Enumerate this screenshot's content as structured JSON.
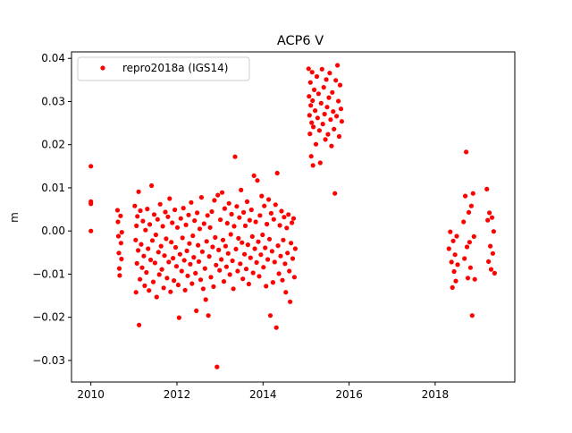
{
  "chart_data": {
    "type": "scatter",
    "title": "ACP6 V",
    "xlabel": "",
    "ylabel": "m",
    "xlim": [
      2009.55,
      2019.85
    ],
    "ylim": [
      -0.035,
      0.0415
    ],
    "xticks": [
      2010,
      2012,
      2014,
      2016,
      2018
    ],
    "yticks": [
      -0.03,
      -0.02,
      -0.01,
      0.0,
      0.01,
      0.02,
      0.03,
      0.04
    ],
    "ytick_labels": [
      "−0.03",
      "−0.02",
      "−0.01",
      "0.00",
      "0.01",
      "0.02",
      "0.03",
      "0.04"
    ],
    "grid": false,
    "legend": {
      "placement": "top-left",
      "entries": [
        "repro2018a (IGS14)"
      ]
    },
    "series": [
      {
        "name": "repro2018a (IGS14)",
        "color": "#ff0000",
        "marker": "circle",
        "points": [
          [
            2010.0,
            0.015
          ],
          [
            2010.0,
            0.0068
          ],
          [
            2010.0,
            0.0063
          ],
          [
            2010.0,
            0.0
          ],
          [
            2010.62,
            0.0048
          ],
          [
            2010.63,
            0.0021
          ],
          [
            2010.64,
            -0.0012
          ],
          [
            2010.65,
            -0.0051
          ],
          [
            2010.66,
            -0.0087
          ],
          [
            2010.67,
            -0.0103
          ],
          [
            2010.69,
            0.0035
          ],
          [
            2010.7,
            -0.0028
          ],
          [
            2010.71,
            -0.0065
          ],
          [
            2010.72,
            -0.0003
          ],
          [
            2011.02,
            0.0058
          ],
          [
            2011.04,
            -0.0021
          ],
          [
            2011.05,
            -0.0142
          ],
          [
            2011.06,
            0.0012
          ],
          [
            2011.07,
            -0.0075
          ],
          [
            2011.08,
            0.0034
          ],
          [
            2011.1,
            -0.0045
          ],
          [
            2011.11,
            0.0091
          ],
          [
            2011.12,
            -0.0218
          ],
          [
            2011.14,
            -0.0112
          ],
          [
            2011.15,
            0.0047
          ],
          [
            2011.17,
            -0.0031
          ],
          [
            2011.19,
            -0.0085
          ],
          [
            2011.21,
            0.0023
          ],
          [
            2011.23,
            -0.0058
          ],
          [
            2011.25,
            -0.0127
          ],
          [
            2011.27,
            0.0002
          ],
          [
            2011.29,
            -0.0096
          ],
          [
            2011.31,
            0.0051
          ],
          [
            2011.33,
            -0.0041
          ],
          [
            2011.35,
            -0.0138
          ],
          [
            2011.37,
            0.0015
          ],
          [
            2011.39,
            -0.0067
          ],
          [
            2011.41,
            0.0105
          ],
          [
            2011.43,
            -0.0022
          ],
          [
            2011.45,
            -0.0118
          ],
          [
            2011.47,
            0.0038
          ],
          [
            2011.49,
            -0.0074
          ],
          [
            2011.51,
            -0.0009
          ],
          [
            2011.53,
            -0.0153
          ],
          [
            2011.55,
            0.0027
          ],
          [
            2011.57,
            -0.0049
          ],
          [
            2011.59,
            -0.0101
          ],
          [
            2011.61,
            0.0062
          ],
          [
            2011.63,
            -0.0035
          ],
          [
            2011.65,
            -0.0089
          ],
          [
            2011.67,
            0.0011
          ],
          [
            2011.69,
            -0.0132
          ],
          [
            2011.71,
            -0.0057
          ],
          [
            2011.73,
            0.0044
          ],
          [
            2011.75,
            -0.0018
          ],
          [
            2011.77,
            -0.0109
          ],
          [
            2011.79,
            0.0033
          ],
          [
            2011.81,
            -0.0072
          ],
          [
            2011.83,
            0.0075
          ],
          [
            2011.85,
            -0.0141
          ],
          [
            2011.87,
            -0.0026
          ],
          [
            2011.89,
            0.0019
          ],
          [
            2011.91,
            -0.0063
          ],
          [
            2011.93,
            -0.0115
          ],
          [
            2011.95,
            0.0049
          ],
          [
            2011.97,
            -0.0038
          ],
          [
            2011.99,
            -0.0082
          ],
          [
            2012.01,
            0.0008
          ],
          [
            2012.03,
            -0.0125
          ],
          [
            2012.05,
            -0.0201
          ],
          [
            2012.07,
            -0.0054
          ],
          [
            2012.09,
            0.0029
          ],
          [
            2012.11,
            -0.0093
          ],
          [
            2012.13,
            -0.0016
          ],
          [
            2012.15,
            0.0053
          ],
          [
            2012.17,
            -0.0068
          ],
          [
            2012.19,
            -0.0137
          ],
          [
            2012.21,
            0.0014
          ],
          [
            2012.23,
            -0.0046
          ],
          [
            2012.25,
            -0.0104
          ],
          [
            2012.27,
            0.0037
          ],
          [
            2012.29,
            -0.0029
          ],
          [
            2012.31,
            -0.0077
          ],
          [
            2012.33,
            0.0066
          ],
          [
            2012.35,
            -0.0122
          ],
          [
            2012.37,
            -0.0011
          ],
          [
            2012.39,
            -0.0061
          ],
          [
            2012.41,
            0.0024
          ],
          [
            2012.43,
            -0.0098
          ],
          [
            2012.45,
            -0.0185
          ],
          [
            2012.47,
            0.0042
          ],
          [
            2012.49,
            -0.0033
          ],
          [
            2012.51,
            -0.0071
          ],
          [
            2012.53,
            0.0005
          ],
          [
            2012.55,
            -0.0113
          ],
          [
            2012.57,
            0.0078
          ],
          [
            2012.59,
            -0.0048
          ],
          [
            2012.61,
            -0.0134
          ],
          [
            2012.63,
            0.0017
          ],
          [
            2012.65,
            -0.0087
          ],
          [
            2012.67,
            -0.0159
          ],
          [
            2012.69,
            -0.0024
          ],
          [
            2012.71,
            0.0036
          ],
          [
            2012.73,
            -0.0196
          ],
          [
            2012.75,
            -0.0059
          ],
          [
            2012.77,
            0.0008
          ],
          [
            2012.79,
            -0.0107
          ],
          [
            2012.81,
            0.0045
          ],
          [
            2012.83,
            -0.0037
          ],
          [
            2012.85,
            -0.0129
          ],
          [
            2012.87,
            0.0071
          ],
          [
            2012.89,
            -0.0015
          ],
          [
            2012.91,
            -0.0079
          ],
          [
            2012.93,
            -0.0315
          ],
          [
            2012.95,
            0.0083
          ],
          [
            2012.97,
            -0.0044
          ],
          [
            2012.99,
            -0.0091
          ],
          [
            2013.01,
            0.0026
          ],
          [
            2013.03,
            -0.0066
          ],
          [
            2013.05,
            0.0089
          ],
          [
            2013.07,
            -0.0021
          ],
          [
            2013.09,
            -0.0117
          ],
          [
            2013.11,
            0.0052
          ],
          [
            2013.13,
            -0.0035
          ],
          [
            2013.15,
            -0.0083
          ],
          [
            2013.17,
            0.0018
          ],
          [
            2013.19,
            -0.0052
          ],
          [
            2013.21,
            0.0064
          ],
          [
            2013.23,
            -0.0101
          ],
          [
            2013.25,
            -0.0008
          ],
          [
            2013.27,
            0.0039
          ],
          [
            2013.29,
            -0.0069
          ],
          [
            2013.31,
            -0.0134
          ],
          [
            2013.33,
            0.0011
          ],
          [
            2013.35,
            0.0172
          ],
          [
            2013.37,
            -0.0042
          ],
          [
            2013.39,
            0.0057
          ],
          [
            2013.41,
            -0.0093
          ],
          [
            2013.43,
            -0.0017
          ],
          [
            2013.45,
            0.0031
          ],
          [
            2013.47,
            -0.0076
          ],
          [
            2013.49,
            0.0095
          ],
          [
            2013.51,
            -0.0027
          ],
          [
            2013.53,
            -0.0111
          ],
          [
            2013.55,
            0.0043
          ],
          [
            2013.57,
            -0.0054
          ],
          [
            2013.59,
            0.0012
          ],
          [
            2013.61,
            -0.0088
          ],
          [
            2013.63,
            0.0068
          ],
          [
            2013.65,
            -0.0032
          ],
          [
            2013.67,
            -0.0123
          ],
          [
            2013.69,
            0.0025
          ],
          [
            2013.71,
            -0.0062
          ],
          [
            2013.73,
            0.0049
          ],
          [
            2013.75,
            -0.0013
          ],
          [
            2013.77,
            -0.0097
          ],
          [
            2013.79,
            0.0128
          ],
          [
            2013.81,
            -0.0041
          ],
          [
            2013.83,
            0.0021
          ],
          [
            2013.85,
            -0.0073
          ],
          [
            2013.87,
            0.0117
          ],
          [
            2013.89,
            -0.0025
          ],
          [
            2013.91,
            -0.0105
          ],
          [
            2013.93,
            0.0036
          ],
          [
            2013.95,
            -0.0055
          ],
          [
            2013.97,
            0.0081
          ],
          [
            2013.99,
            -0.0009
          ],
          [
            2014.01,
            -0.0084
          ],
          [
            2014.03,
            0.0058
          ],
          [
            2014.05,
            -0.0039
          ],
          [
            2014.07,
            -0.0128
          ],
          [
            2014.09,
            0.0016
          ],
          [
            2014.11,
            -0.0066
          ],
          [
            2014.13,
            0.0073
          ],
          [
            2014.15,
            -0.0019
          ],
          [
            2014.17,
            -0.0196
          ],
          [
            2014.19,
            0.0041
          ],
          [
            2014.21,
            -0.0047
          ],
          [
            2014.23,
            -0.0119
          ],
          [
            2014.25,
            0.0027
          ],
          [
            2014.27,
            -0.0072
          ],
          [
            2014.29,
            0.0061
          ],
          [
            2014.31,
            -0.0224
          ],
          [
            2014.33,
            0.0134
          ],
          [
            2014.35,
            -0.0034
          ],
          [
            2014.37,
            -0.0099
          ],
          [
            2014.39,
            0.0013
          ],
          [
            2014.41,
            -0.0058
          ],
          [
            2014.43,
            0.0046
          ],
          [
            2014.45,
            -0.0114
          ],
          [
            2014.47,
            -0.0021
          ],
          [
            2014.49,
            0.0032
          ],
          [
            2014.51,
            -0.0076
          ],
          [
            2014.53,
            -0.0142
          ],
          [
            2014.55,
            0.0007
          ],
          [
            2014.57,
            -0.0051
          ],
          [
            2014.59,
            0.0038
          ],
          [
            2014.61,
            -0.0093
          ],
          [
            2014.63,
            -0.0164
          ],
          [
            2014.65,
            -0.0028
          ],
          [
            2014.67,
            0.0019
          ],
          [
            2014.69,
            -0.0064
          ],
          [
            2014.71,
            0.0029
          ],
          [
            2014.73,
            -0.0107
          ],
          [
            2014.75,
            -0.0041
          ],
          [
            2015.06,
            0.0376
          ],
          [
            2015.07,
            0.0312
          ],
          [
            2015.08,
            0.0268
          ],
          [
            2015.09,
            0.0225
          ],
          [
            2015.1,
            0.0344
          ],
          [
            2015.11,
            0.0291
          ],
          [
            2015.12,
            0.0173
          ],
          [
            2015.13,
            0.0251
          ],
          [
            2015.14,
            0.0368
          ],
          [
            2015.15,
            0.0302
          ],
          [
            2015.16,
            0.0152
          ],
          [
            2015.17,
            0.0241
          ],
          [
            2015.19,
            0.0327
          ],
          [
            2015.21,
            0.0279
          ],
          [
            2015.23,
            0.0201
          ],
          [
            2015.25,
            0.0358
          ],
          [
            2015.27,
            0.0262
          ],
          [
            2015.29,
            0.0318
          ],
          [
            2015.31,
            0.0233
          ],
          [
            2015.33,
            0.0158
          ],
          [
            2015.35,
            0.0296
          ],
          [
            2015.37,
            0.0375
          ],
          [
            2015.39,
            0.0248
          ],
          [
            2015.41,
            0.0333
          ],
          [
            2015.43,
            0.0271
          ],
          [
            2015.45,
            0.0212
          ],
          [
            2015.47,
            0.0351
          ],
          [
            2015.49,
            0.0287
          ],
          [
            2015.51,
            0.0224
          ],
          [
            2015.53,
            0.0309
          ],
          [
            2015.55,
            0.0366
          ],
          [
            2015.57,
            0.0258
          ],
          [
            2015.59,
            0.0197
          ],
          [
            2015.61,
            0.0321
          ],
          [
            2015.63,
            0.0277
          ],
          [
            2015.65,
            0.0236
          ],
          [
            2015.67,
            0.0087
          ],
          [
            2015.69,
            0.0349
          ],
          [
            2015.71,
            0.0266
          ],
          [
            2015.73,
            0.0384
          ],
          [
            2015.75,
            0.0301
          ],
          [
            2015.77,
            0.0219
          ],
          [
            2015.79,
            0.0338
          ],
          [
            2015.81,
            0.0283
          ],
          [
            2015.83,
            0.0254
          ],
          [
            2018.32,
            -0.0041
          ],
          [
            2018.35,
            -0.0002
          ],
          [
            2018.38,
            -0.0072
          ],
          [
            2018.4,
            -0.0131
          ],
          [
            2018.42,
            -0.0023
          ],
          [
            2018.44,
            -0.0094
          ],
          [
            2018.46,
            -0.0055
          ],
          [
            2018.48,
            -0.0116
          ],
          [
            2018.5,
            -0.0012
          ],
          [
            2018.52,
            -0.0078
          ],
          [
            2018.66,
            0.0021
          ],
          [
            2018.68,
            -0.0064
          ],
          [
            2018.7,
            0.0081
          ],
          [
            2018.72,
            0.0183
          ],
          [
            2018.74,
            -0.0037
          ],
          [
            2018.76,
            -0.0109
          ],
          [
            2018.78,
            0.0043
          ],
          [
            2018.8,
            -0.0026
          ],
          [
            2018.82,
            -0.0085
          ],
          [
            2018.84,
            0.0058
          ],
          [
            2018.86,
            -0.0196
          ],
          [
            2018.88,
            0.0087
          ],
          [
            2018.9,
            -0.0013
          ],
          [
            2018.92,
            -0.0112
          ],
          [
            2019.2,
            0.0097
          ],
          [
            2019.22,
            0.0025
          ],
          [
            2019.24,
            -0.0071
          ],
          [
            2019.26,
            0.0042
          ],
          [
            2019.28,
            -0.0035
          ],
          [
            2019.3,
            -0.0089
          ],
          [
            2019.32,
            0.0031
          ],
          [
            2019.34,
            -0.0052
          ],
          [
            2019.36,
            -0.0001
          ],
          [
            2019.38,
            -0.0098
          ]
        ]
      }
    ]
  }
}
